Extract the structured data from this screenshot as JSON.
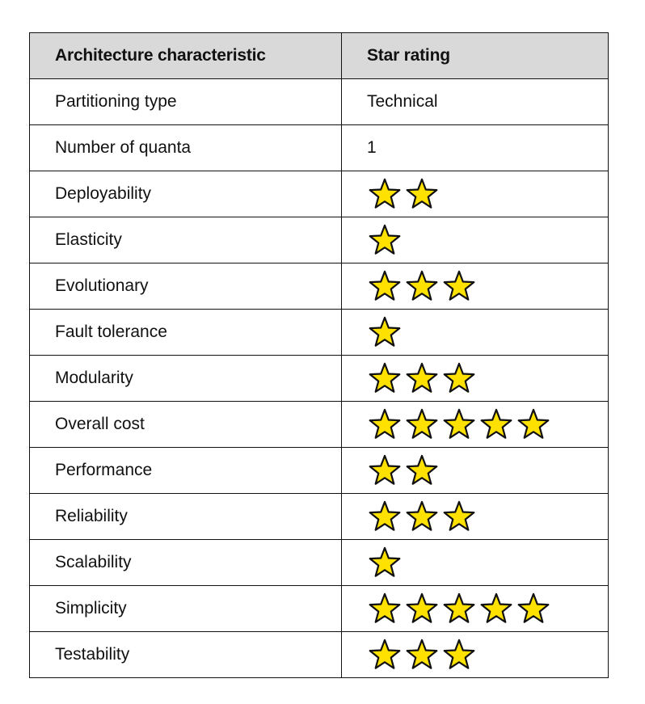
{
  "table": {
    "headers": {
      "characteristic": "Architecture characteristic",
      "rating": "Star rating"
    },
    "star_color": "#FFE100",
    "star_outline_color": "#111111",
    "header_background": "#D9D9D9",
    "rows": [
      {
        "name": "Partitioning type",
        "text": "Technical"
      },
      {
        "name": "Number of quanta",
        "text": "1"
      },
      {
        "name": "Deployability",
        "stars": 2
      },
      {
        "name": "Elasticity",
        "stars": 1
      },
      {
        "name": "Evolutionary",
        "stars": 3
      },
      {
        "name": "Fault tolerance",
        "stars": 1
      },
      {
        "name": "Modularity",
        "stars": 3
      },
      {
        "name": "Overall cost",
        "stars": 5
      },
      {
        "name": "Performance",
        "stars": 2
      },
      {
        "name": "Reliability",
        "stars": 3
      },
      {
        "name": "Scalability",
        "stars": 1
      },
      {
        "name": "Simplicity",
        "stars": 5
      },
      {
        "name": "Testability",
        "stars": 3
      }
    ]
  }
}
